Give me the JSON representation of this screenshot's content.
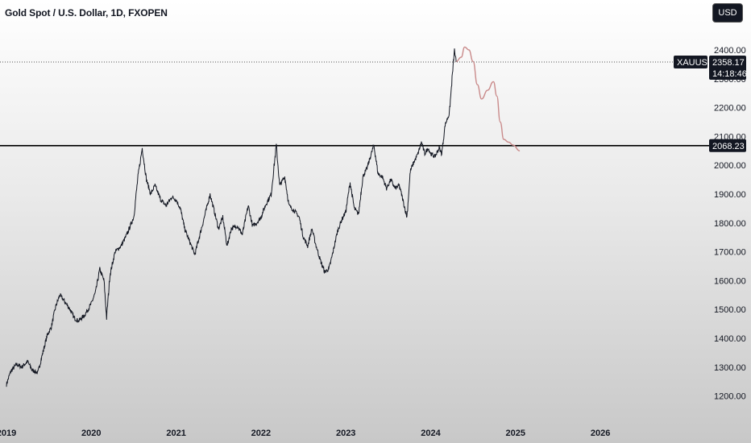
{
  "header": {
    "title": "Gold Spot / U.S. Dollar, 1D, FXOPEN",
    "currency_label": "USD"
  },
  "colors": {
    "price_line": "#131722",
    "projection": "#c98a8a",
    "tag_bg": "#131722"
  },
  "current_price": {
    "symbol": "XAUUSD",
    "value": "2358.17",
    "countdown": "14:18:46"
  },
  "level_line": {
    "value": "2068.23"
  },
  "chart_data": {
    "type": "line",
    "title": "Gold Spot / U.S. Dollar, 1D, FXOPEN",
    "xlabel": "",
    "ylabel": "",
    "ylim": [
      1130,
      2450
    ],
    "xlim": [
      2019.0,
      2026.6
    ],
    "grid": false,
    "x_ticks": [
      "2019",
      "2020",
      "2021",
      "2022",
      "2023",
      "2024",
      "2025",
      "2026"
    ],
    "y_ticks": [
      "1200.00",
      "1300.00",
      "1400.00",
      "1500.00",
      "1600.00",
      "1700.00",
      "1800.00",
      "1900.00",
      "2000.00",
      "2100.00",
      "2200.00",
      "2300.00",
      "2400.00"
    ],
    "horizontal_levels": [
      2068.23,
      2358.17
    ],
    "series": [
      {
        "type": "price",
        "points": [
          [
            2019.0,
            1240
          ],
          [
            2019.05,
            1285
          ],
          [
            2019.12,
            1310
          ],
          [
            2019.18,
            1300
          ],
          [
            2019.25,
            1320
          ],
          [
            2019.3,
            1290
          ],
          [
            2019.37,
            1280
          ],
          [
            2019.42,
            1340
          ],
          [
            2019.48,
            1410
          ],
          [
            2019.53,
            1440
          ],
          [
            2019.58,
            1510
          ],
          [
            2019.63,
            1550
          ],
          [
            2019.68,
            1530
          ],
          [
            2019.75,
            1500
          ],
          [
            2019.8,
            1470
          ],
          [
            2019.85,
            1460
          ],
          [
            2019.92,
            1480
          ],
          [
            2020.0,
            1520
          ],
          [
            2020.05,
            1560
          ],
          [
            2020.1,
            1640
          ],
          [
            2020.15,
            1600
          ],
          [
            2020.18,
            1470
          ],
          [
            2020.22,
            1620
          ],
          [
            2020.28,
            1700
          ],
          [
            2020.35,
            1720
          ],
          [
            2020.42,
            1760
          ],
          [
            2020.5,
            1820
          ],
          [
            2020.55,
            1960
          ],
          [
            2020.6,
            2060
          ],
          [
            2020.65,
            1950
          ],
          [
            2020.7,
            1900
          ],
          [
            2020.75,
            1930
          ],
          [
            2020.82,
            1880
          ],
          [
            2020.88,
            1860
          ],
          [
            2020.95,
            1890
          ],
          [
            2021.0,
            1880
          ],
          [
            2021.05,
            1850
          ],
          [
            2021.1,
            1780
          ],
          [
            2021.18,
            1720
          ],
          [
            2021.22,
            1690
          ],
          [
            2021.28,
            1760
          ],
          [
            2021.35,
            1840
          ],
          [
            2021.4,
            1900
          ],
          [
            2021.45,
            1840
          ],
          [
            2021.5,
            1780
          ],
          [
            2021.55,
            1820
          ],
          [
            2021.6,
            1720
          ],
          [
            2021.65,
            1780
          ],
          [
            2021.72,
            1790
          ],
          [
            2021.78,
            1760
          ],
          [
            2021.85,
            1860
          ],
          [
            2021.9,
            1790
          ],
          [
            2021.95,
            1800
          ],
          [
            2022.0,
            1820
          ],
          [
            2022.05,
            1860
          ],
          [
            2022.12,
            1900
          ],
          [
            2022.18,
            2070
          ],
          [
            2022.22,
            1930
          ],
          [
            2022.28,
            1960
          ],
          [
            2022.33,
            1860
          ],
          [
            2022.4,
            1840
          ],
          [
            2022.45,
            1820
          ],
          [
            2022.5,
            1750
          ],
          [
            2022.55,
            1720
          ],
          [
            2022.6,
            1780
          ],
          [
            2022.65,
            1720
          ],
          [
            2022.7,
            1670
          ],
          [
            2022.75,
            1630
          ],
          [
            2022.8,
            1640
          ],
          [
            2022.85,
            1700
          ],
          [
            2022.9,
            1770
          ],
          [
            2022.95,
            1810
          ],
          [
            2023.0,
            1840
          ],
          [
            2023.05,
            1940
          ],
          [
            2023.1,
            1850
          ],
          [
            2023.15,
            1830
          ],
          [
            2023.2,
            1960
          ],
          [
            2023.25,
            1990
          ],
          [
            2023.3,
            2040
          ],
          [
            2023.33,
            2070
          ],
          [
            2023.38,
            1970
          ],
          [
            2023.43,
            1960
          ],
          [
            2023.48,
            1920
          ],
          [
            2023.53,
            1950
          ],
          [
            2023.58,
            1920
          ],
          [
            2023.63,
            1930
          ],
          [
            2023.68,
            1870
          ],
          [
            2023.72,
            1820
          ],
          [
            2023.76,
            1980
          ],
          [
            2023.8,
            2010
          ],
          [
            2023.85,
            2040
          ],
          [
            2023.89,
            2080
          ],
          [
            2023.93,
            2040
          ],
          [
            2023.97,
            2060
          ],
          [
            2024.0,
            2040
          ],
          [
            2024.05,
            2030
          ],
          [
            2024.1,
            2060
          ],
          [
            2024.13,
            2040
          ],
          [
            2024.17,
            2140
          ],
          [
            2024.22,
            2180
          ],
          [
            2024.26,
            2330
          ],
          [
            2024.28,
            2400
          ],
          [
            2024.3,
            2358
          ]
        ]
      },
      {
        "type": "projection",
        "points": [
          [
            2024.3,
            2360
          ],
          [
            2024.36,
            2375
          ],
          [
            2024.4,
            2410
          ],
          [
            2024.45,
            2400
          ],
          [
            2024.5,
            2360
          ],
          [
            2024.55,
            2280
          ],
          [
            2024.6,
            2230
          ],
          [
            2024.67,
            2260
          ],
          [
            2024.74,
            2290
          ],
          [
            2024.78,
            2240
          ],
          [
            2024.82,
            2150
          ],
          [
            2024.86,
            2090
          ],
          [
            2024.92,
            2080
          ],
          [
            2024.97,
            2070
          ],
          [
            2025.05,
            2050
          ]
        ]
      }
    ]
  }
}
